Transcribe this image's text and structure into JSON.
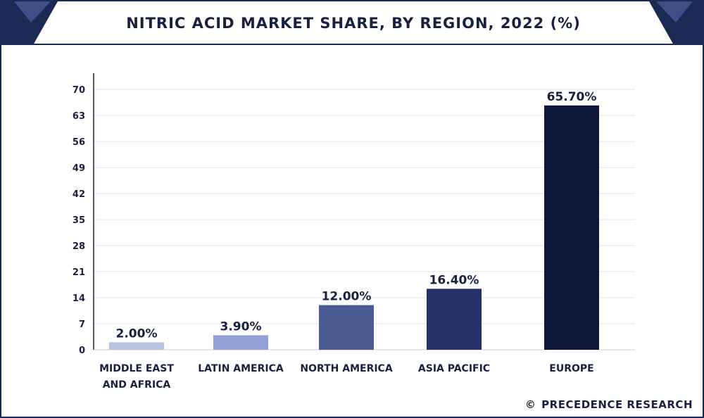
{
  "title": "NITRIC ACID MARKET SHARE, BY REGION, 2022 (%)",
  "credit": "PRECEDENCE RESEARCH",
  "credit_icon": "copyright-icon",
  "chart_data": {
    "type": "bar",
    "title": "NITRIC ACID MARKET SHARE, BY REGION, 2022 (%)",
    "categories": [
      [
        "MIDDLE EAST",
        "AND AFRICA"
      ],
      [
        "LATIN AMERICA"
      ],
      [
        "NORTH AMERICA"
      ],
      [
        "ASIA PACIFIC"
      ],
      [
        "EUROPE"
      ]
    ],
    "values": [
      2.0,
      3.9,
      12.0,
      16.4,
      65.7
    ],
    "value_labels": [
      "2.00%",
      "3.90%",
      "12.00%",
      "16.40%",
      "65.70%"
    ],
    "colors": [
      "#b7c3e3",
      "#8fa1d6",
      "#4a5a93",
      "#243068",
      "#0d1838"
    ],
    "yticks": [
      0,
      7,
      14,
      21,
      28,
      35,
      42,
      49,
      56,
      63,
      70
    ],
    "ylim": [
      0,
      74
    ],
    "grid": true,
    "xlabel": "",
    "ylabel": ""
  }
}
